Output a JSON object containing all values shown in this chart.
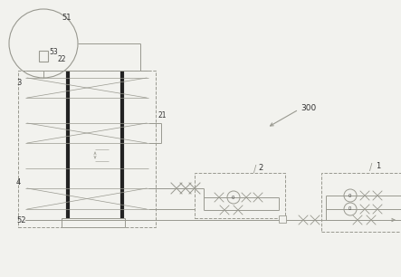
{
  "bg_color": "#f2f2ee",
  "line_color": "#999990",
  "dark_line": "#222222",
  "fig_width": 4.43,
  "fig_height": 3.06,
  "dpi": 100
}
